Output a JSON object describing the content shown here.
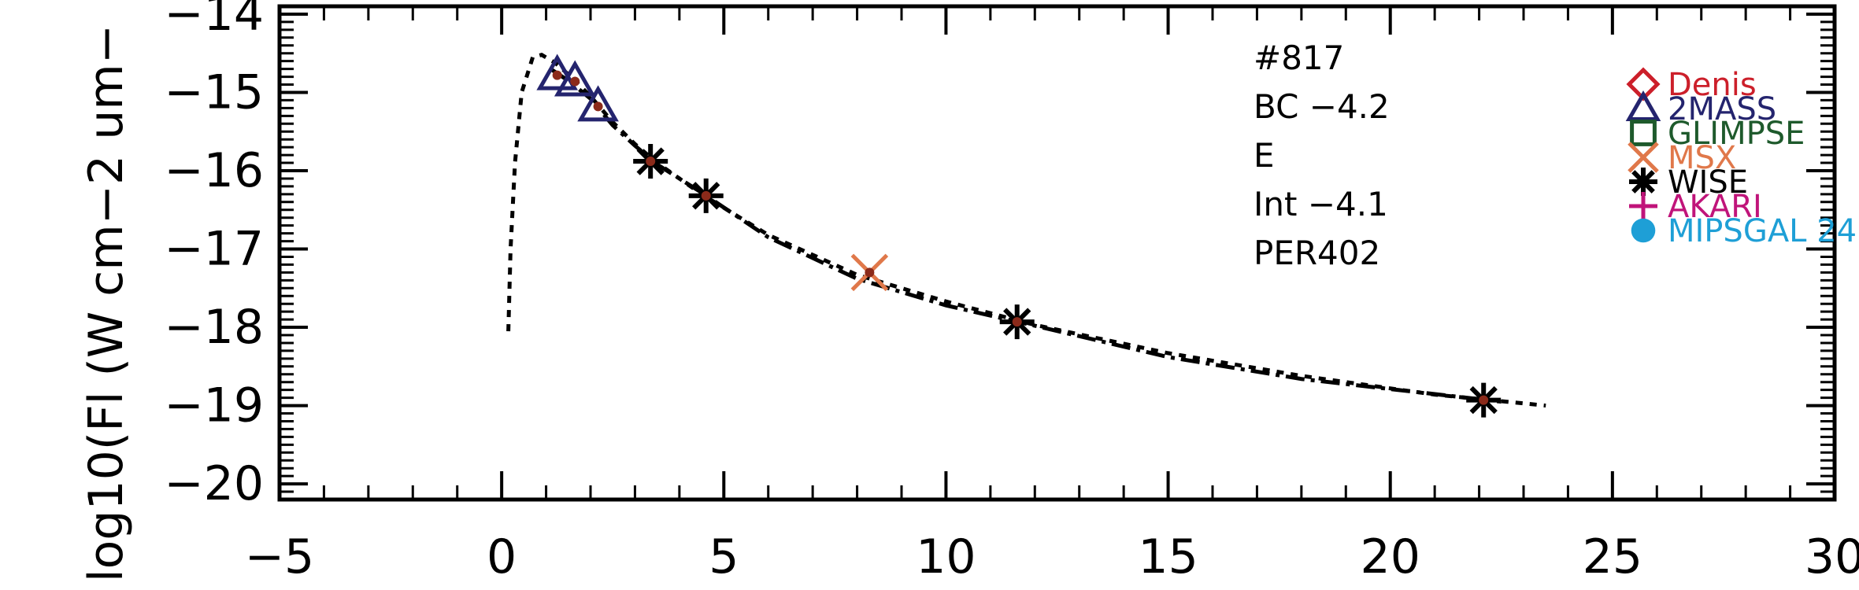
{
  "chart_data": {
    "type": "scatter",
    "title": "",
    "xlabel": "",
    "ylabel": "log10(Fl (W cm−2 um−",
    "xlim": [
      -5,
      30
    ],
    "ylim": [
      -20.2,
      -13.9
    ],
    "x_ticks": [
      -5,
      0,
      5,
      10,
      15,
      20,
      25,
      30
    ],
    "x_tick_labels": [
      "−5",
      "0",
      "5",
      "10",
      "15",
      "20",
      "25",
      "30"
    ],
    "y_ticks": [
      -20,
      -19,
      -18,
      -17,
      -16,
      -15,
      -14
    ],
    "y_tick_labels": [
      "−20",
      "−19",
      "−18",
      "−17",
      "−16",
      "−15",
      "−14"
    ],
    "annotations": [
      "#817",
      "BC −4.2",
      "E",
      "Int −4.1",
      "PER402"
    ],
    "legend": {
      "placement": "top-right",
      "entries": [
        {
          "name": "Denis",
          "marker": "diamond",
          "color": "#cc1f2a"
        },
        {
          "name": "2MASS",
          "marker": "triangle",
          "color": "#24246e"
        },
        {
          "name": "GLIMPSE",
          "marker": "square",
          "color": "#1e5a2c"
        },
        {
          "name": "MSX",
          "marker": "x",
          "color": "#e0784a"
        },
        {
          "name": "WISE",
          "marker": "asterisk",
          "color": "#000000"
        },
        {
          "name": "AKARI",
          "marker": "plus",
          "color": "#c0147a"
        },
        {
          "name": "MIPSGAL 24",
          "marker": "circle",
          "color": "#1e9fd6"
        }
      ]
    },
    "series": [
      {
        "name": "2MASS",
        "marker": "triangle",
        "color": "#24246e",
        "x": [
          1.25,
          1.65,
          2.17
        ],
        "y": [
          -14.78,
          -14.86,
          -15.18
        ]
      },
      {
        "name": "WISE",
        "marker": "asterisk",
        "color": "#000000",
        "x": [
          3.35,
          4.6,
          11.6,
          22.1
        ],
        "y": [
          -15.88,
          -16.32,
          -17.93,
          -18.93
        ]
      },
      {
        "name": "MSX",
        "marker": "x",
        "color": "#e0784a",
        "x": [
          8.28
        ],
        "y": [
          -17.3
        ]
      }
    ],
    "model_dotted": {
      "x": [
        0.15,
        0.2,
        0.3,
        0.45,
        0.7,
        0.9,
        1.2,
        1.6,
        2.0,
        2.5,
        3.0,
        3.5,
        4.5,
        6,
        8,
        10,
        12,
        15,
        18,
        21,
        23.5
      ],
      "y": [
        -18.05,
        -17.0,
        -15.9,
        -15.0,
        -14.55,
        -14.52,
        -14.62,
        -14.82,
        -15.05,
        -15.38,
        -15.66,
        -15.9,
        -16.3,
        -16.82,
        -17.33,
        -17.67,
        -17.97,
        -18.33,
        -18.62,
        -18.86,
        -19.0
      ]
    },
    "model_dashdot": {
      "x": [
        1.1,
        1.5,
        2.0,
        2.5,
        3.0,
        3.5,
        4.5,
        6,
        8,
        10,
        12,
        15,
        18,
        22.5
      ],
      "y": [
        -14.7,
        -14.85,
        -15.08,
        -15.42,
        -15.68,
        -15.92,
        -16.28,
        -16.85,
        -17.38,
        -17.72,
        -17.98,
        -18.38,
        -18.66,
        -18.95
      ]
    }
  }
}
